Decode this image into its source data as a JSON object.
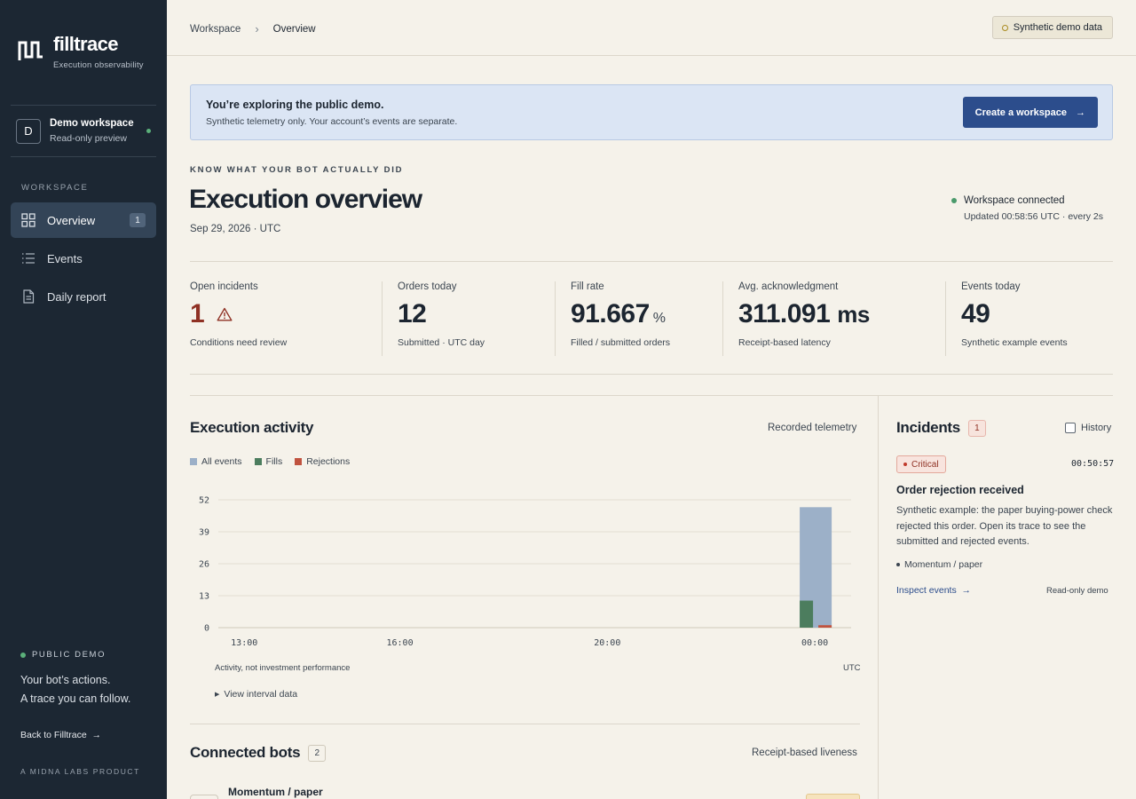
{
  "brand": {
    "name": "filltrace",
    "tagline": "Execution observability"
  },
  "workspace": {
    "initial": "D",
    "name": "Demo workspace",
    "mode": "Read-only preview"
  },
  "sidebar": {
    "section": "WORKSPACE",
    "items": [
      {
        "label": "Overview",
        "icon": "grid-icon",
        "badge": "1",
        "active": true
      },
      {
        "label": "Events",
        "icon": "list-icon"
      },
      {
        "label": "Daily report",
        "icon": "document-icon"
      }
    ],
    "demo_label": "PUBLIC DEMO",
    "tagline_1": "Your bot’s actions.",
    "tagline_2": "A trace you can follow.",
    "back_link": "Back to Filltrace",
    "product": "A MIDNA LABS PRODUCT"
  },
  "breadcrumb": {
    "root": "Workspace",
    "current": "Overview"
  },
  "demo_pill": "Synthetic demo data",
  "banner": {
    "title": "You’re exploring the public demo.",
    "text": "Synthetic telemetry only. Your account’s events are separate.",
    "button": "Create a workspace"
  },
  "header": {
    "eyebrow": "KNOW WHAT YOUR BOT ACTUALLY DID",
    "title": "Execution overview",
    "date": "Sep 29, 2026 · UTC",
    "connection": "Workspace connected",
    "updated": "Updated 00:58:56 UTC · every 2s"
  },
  "kpis": [
    {
      "label": "Open incidents",
      "value": "1",
      "unit": "",
      "sub": "Conditions need review"
    },
    {
      "label": "Orders today",
      "value": "12",
      "unit": "",
      "sub": "Submitted · UTC day"
    },
    {
      "label": "Fill rate",
      "value": "91.667",
      "unit": "%",
      "sub": "Filled / submitted orders"
    },
    {
      "label": "Avg. acknowledgment",
      "value": "311.091",
      "unit": "ms",
      "sub": "Receipt-based latency"
    },
    {
      "label": "Events today",
      "value": "49",
      "unit": "",
      "sub": "Synthetic example events"
    }
  ],
  "activity": {
    "title": "Execution activity",
    "right": "Recorded telemetry",
    "footnote": "Activity, not investment performance",
    "timezone": "UTC",
    "interval_toggle": "View interval data"
  },
  "colors": {
    "all": "#9cb0c8",
    "fills": "#4c7d5e",
    "rejections": "#c0533f",
    "accent": "#2c4d8c"
  },
  "chart_data": {
    "type": "bar",
    "legend": [
      "All events",
      "Fills",
      "Rejections"
    ],
    "legend_position": "top-left",
    "x_ticks": [
      "13:00",
      "16:00",
      "20:00",
      "00:00"
    ],
    "y_ticks": [
      0,
      13,
      26,
      39,
      52
    ],
    "ylim": [
      0,
      52
    ],
    "grid": true,
    "series": [
      {
        "name": "All events",
        "x": [
          "00:00"
        ],
        "values": [
          49
        ]
      },
      {
        "name": "Fills",
        "x": [
          "00:00"
        ],
        "values": [
          11
        ]
      },
      {
        "name": "Rejections",
        "x": [
          "00:00"
        ],
        "values": [
          1
        ]
      }
    ]
  },
  "bots": {
    "title": "Connected bots",
    "count": "2",
    "right": "Receipt-based liveness",
    "rows": [
      {
        "name": "Momentum / paper"
      }
    ]
  },
  "incidents": {
    "title": "Incidents",
    "count": "1",
    "history": "History",
    "item": {
      "severity": "Critical",
      "time": "00:50:57",
      "title": "Order rejection received",
      "body": "Synthetic example: the paper buying-power check rejected this order. Open its trace to see the submitted and rejected events.",
      "bot": "Momentum / paper",
      "link": "Inspect events",
      "note": "Read-only demo"
    }
  }
}
